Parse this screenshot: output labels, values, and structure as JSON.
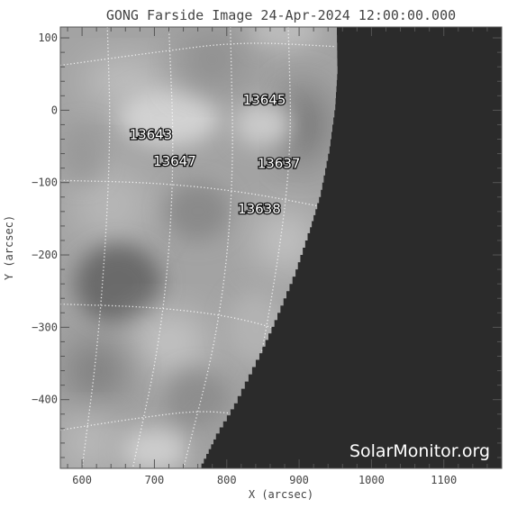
{
  "chart_data": {
    "type": "heatmap",
    "title": "GONG Farside Image 24-Apr-2024 12:00:00.000",
    "xlabel": "X (arcsec)",
    "ylabel": "Y (arcsec)",
    "xlim": [
      570,
      1180
    ],
    "ylim": [
      -495,
      115
    ],
    "x_ticks": [
      600,
      700,
      800,
      900,
      1000,
      1100
    ],
    "y_ticks": [
      100,
      0,
      -100,
      -200,
      -300,
      -400
    ],
    "grid": true,
    "active_regions": [
      {
        "label": "13645",
        "x": 852,
        "y": 8
      },
      {
        "label": "13643",
        "x": 695,
        "y": -40
      },
      {
        "label": "13647",
        "x": 728,
        "y": -77
      },
      {
        "label": "13637",
        "x": 872,
        "y": -80
      },
      {
        "label": "13638",
        "x": 845,
        "y": -143
      }
    ],
    "limb": [
      [
        952,
        115
      ],
      [
        953,
        50
      ],
      [
        950,
        0
      ],
      [
        942,
        -60
      ],
      [
        930,
        -120
      ],
      [
        915,
        -170
      ],
      [
        895,
        -230
      ],
      [
        870,
        -290
      ],
      [
        845,
        -345
      ],
      [
        815,
        -405
      ],
      [
        785,
        -455
      ],
      [
        765,
        -495
      ]
    ],
    "watermark": "SolarMonitor.org",
    "colors": {
      "background": "#ffffff",
      "offdisk": "#2b2b2b",
      "axis": "#444444",
      "grid": "#ffffff"
    }
  }
}
